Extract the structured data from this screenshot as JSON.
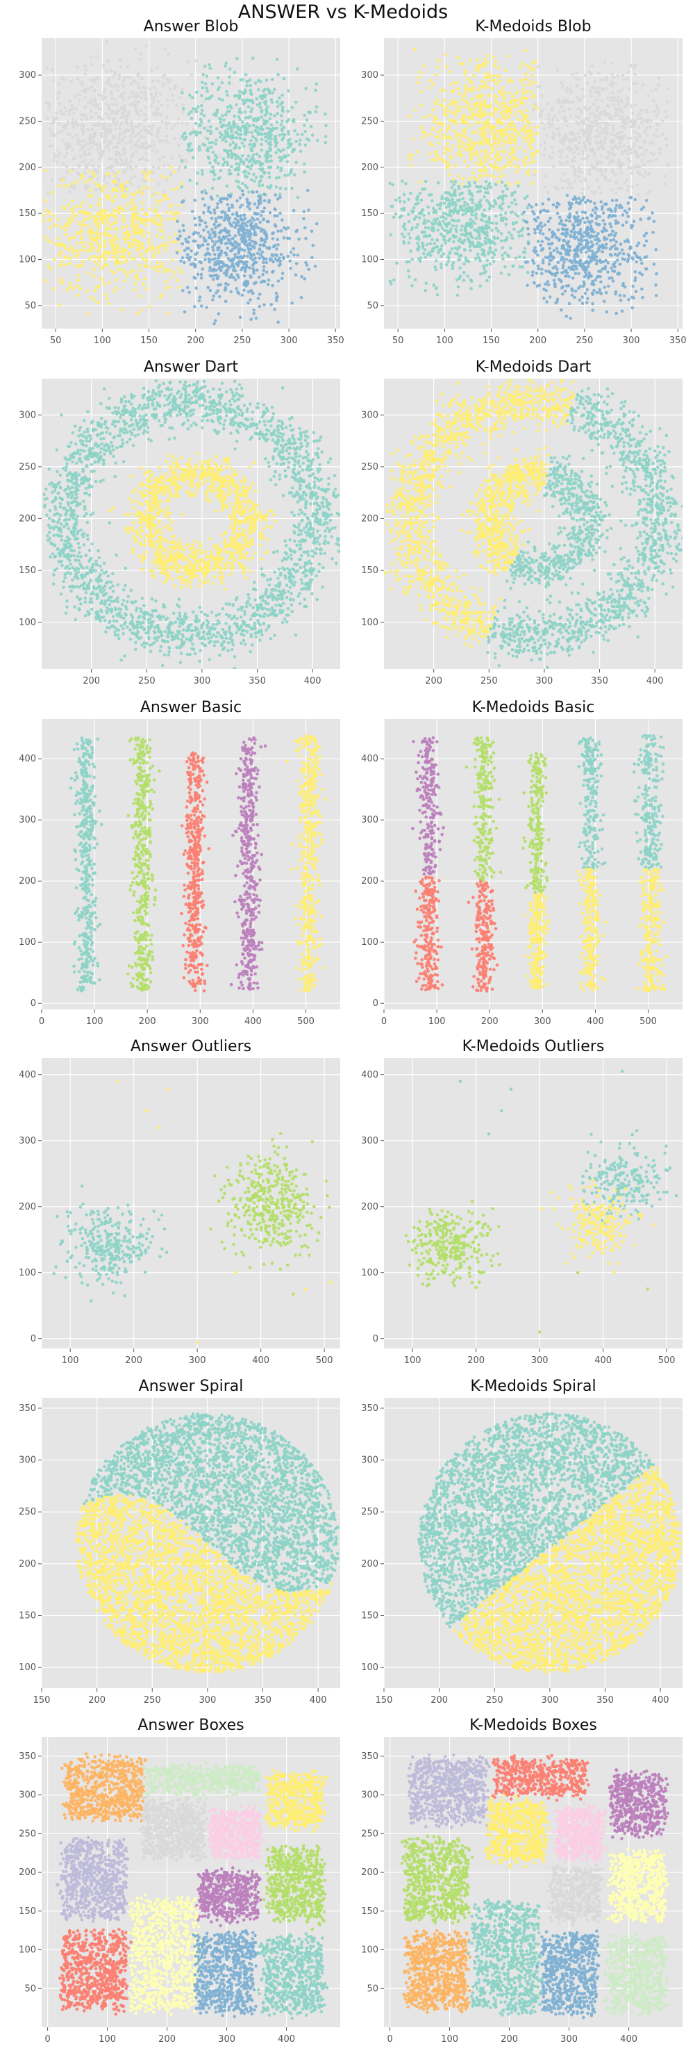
{
  "figure": {
    "suptitle": "ANSWER vs K-Medoids"
  },
  "palette": {
    "panel_bg": "#e5e5e5",
    "grid": "#ffffff"
  },
  "chart_data": [
    {
      "type": "scatter",
      "title": "Answer Blob",
      "xlim": [
        35,
        355
      ],
      "ylim": [
        25,
        340
      ],
      "xticks": [
        50,
        100,
        150,
        200,
        250,
        300,
        350
      ],
      "yticks": [
        50,
        100,
        150,
        200,
        250,
        300
      ],
      "clusters": [
        {
          "shape": "blob",
          "cx": 110,
          "cy": 240,
          "sx": 42,
          "sy": 38,
          "n": 700,
          "color": "#d9d9d9",
          "clip": [
            40,
            320,
            170,
            340
          ]
        },
        {
          "shape": "blob",
          "cx": 255,
          "cy": 235,
          "sx": 38,
          "sy": 36,
          "n": 600,
          "color": "#8dd3c7",
          "clip": [
            185,
            340,
            165,
            320
          ]
        },
        {
          "shape": "blob",
          "cx": 115,
          "cy": 130,
          "sx": 38,
          "sy": 36,
          "n": 600,
          "color": "#ffed6f",
          "clip": [
            30,
            185,
            40,
            200
          ]
        },
        {
          "shape": "blob",
          "cx": 245,
          "cy": 115,
          "sx": 38,
          "sy": 32,
          "n": 650,
          "color": "#80b1d3",
          "clip": [
            180,
            330,
            30,
            175
          ]
        }
      ]
    },
    {
      "type": "scatter",
      "title": "K-Medoids Blob",
      "xlim": [
        35,
        355
      ],
      "ylim": [
        25,
        340
      ],
      "xticks": [
        50,
        100,
        150,
        200,
        250,
        300,
        350
      ],
      "yticks": [
        50,
        100,
        150,
        200,
        250,
        300
      ],
      "clusters": [
        {
          "shape": "blob",
          "cx": 150,
          "cy": 240,
          "sx": 42,
          "sy": 38,
          "n": 650,
          "color": "#ffed6f",
          "clip": [
            60,
            200,
            180,
            330
          ]
        },
        {
          "shape": "blob",
          "cx": 270,
          "cy": 235,
          "sx": 38,
          "sy": 36,
          "n": 650,
          "color": "#d9d9d9",
          "clip": [
            195,
            340,
            170,
            320
          ]
        },
        {
          "shape": "blob",
          "cx": 120,
          "cy": 140,
          "sx": 38,
          "sy": 36,
          "n": 600,
          "color": "#8dd3c7",
          "clip": [
            40,
            190,
            60,
            185
          ]
        },
        {
          "shape": "blob",
          "cx": 245,
          "cy": 115,
          "sx": 38,
          "sy": 32,
          "n": 650,
          "color": "#80b1d3",
          "clip": [
            185,
            330,
            30,
            170
          ]
        }
      ]
    },
    {
      "type": "scatter",
      "title": "Answer Dart",
      "xlim": [
        155,
        425
      ],
      "ylim": [
        55,
        335
      ],
      "xticks": [
        200,
        250,
        300,
        350,
        400
      ],
      "yticks": [
        100,
        150,
        200,
        250,
        300
      ],
      "clusters": [
        {
          "shape": "ring",
          "cx": 290,
          "cy": 200,
          "r": 113,
          "w": 12,
          "n": 2200,
          "color": "#8dd3c7"
        },
        {
          "shape": "ring",
          "cx": 295,
          "cy": 198,
          "r": 46,
          "w": 10,
          "n": 1100,
          "color": "#ffed6f"
        }
      ]
    },
    {
      "type": "scatter",
      "title": "K-Medoids Dart",
      "xlim": [
        155,
        425
      ],
      "ylim": [
        55,
        335
      ],
      "xticks": [
        200,
        250,
        300,
        350,
        400
      ],
      "yticks": [
        100,
        150,
        200,
        250,
        300
      ],
      "clusters": [
        {
          "shape": "ring",
          "cx": 290,
          "cy": 200,
          "r": 113,
          "w": 12,
          "n": 1100,
          "color": "#ffed6f",
          "amin": 72,
          "amax": 250
        },
        {
          "shape": "ring",
          "cx": 290,
          "cy": 200,
          "r": 113,
          "w": 12,
          "n": 1100,
          "color": "#8dd3c7",
          "amin": -110,
          "amax": 72
        },
        {
          "shape": "ring",
          "cx": 295,
          "cy": 198,
          "r": 46,
          "w": 10,
          "n": 550,
          "color": "#ffed6f",
          "amin": 80,
          "amax": 240
        },
        {
          "shape": "ring",
          "cx": 295,
          "cy": 198,
          "r": 46,
          "w": 10,
          "n": 550,
          "color": "#8dd3c7",
          "amin": -120,
          "amax": 80
        }
      ]
    },
    {
      "type": "scatter",
      "title": "Answer Basic",
      "xlim": [
        0,
        565
      ],
      "ylim": [
        -10,
        465
      ],
      "xticks": [
        0,
        100,
        200,
        300,
        400,
        500
      ],
      "yticks": [
        0,
        100,
        200,
        300,
        400
      ],
      "clusters": [
        {
          "shape": "stripe",
          "cx": 85,
          "ymin": 20,
          "ymax": 435,
          "sx": 16,
          "n": 450,
          "color": "#8dd3c7"
        },
        {
          "shape": "stripe",
          "cx": 190,
          "ymin": 20,
          "ymax": 435,
          "sx": 16,
          "n": 450,
          "color": "#b3de69"
        },
        {
          "shape": "stripe",
          "cx": 290,
          "ymin": 20,
          "ymax": 410,
          "sx": 14,
          "n": 450,
          "color": "#fb8072"
        },
        {
          "shape": "stripe",
          "cx": 392,
          "ymin": 20,
          "ymax": 435,
          "sx": 16,
          "n": 450,
          "color": "#bc80bd"
        },
        {
          "shape": "stripe",
          "cx": 505,
          "ymin": 20,
          "ymax": 440,
          "sx": 18,
          "n": 450,
          "color": "#ffed6f"
        }
      ]
    },
    {
      "type": "scatter",
      "title": "K-Medoids Basic",
      "xlim": [
        0,
        565
      ],
      "ylim": [
        -10,
        465
      ],
      "xticks": [
        0,
        100,
        200,
        300,
        400,
        500
      ],
      "yticks": [
        0,
        100,
        200,
        300,
        400
      ],
      "clusters": [
        {
          "shape": "stripe",
          "cx": 85,
          "ymin": 210,
          "ymax": 435,
          "sx": 16,
          "n": 220,
          "color": "#bc80bd"
        },
        {
          "shape": "stripe",
          "cx": 85,
          "ymin": 20,
          "ymax": 210,
          "sx": 16,
          "n": 230,
          "color": "#fb8072"
        },
        {
          "shape": "stripe",
          "cx": 190,
          "ymin": 200,
          "ymax": 435,
          "sx": 16,
          "n": 230,
          "color": "#b3de69"
        },
        {
          "shape": "stripe",
          "cx": 190,
          "ymin": 20,
          "ymax": 200,
          "sx": 16,
          "n": 220,
          "color": "#fb8072"
        },
        {
          "shape": "stripe",
          "cx": 290,
          "ymin": 180,
          "ymax": 410,
          "sx": 14,
          "n": 240,
          "color": "#b3de69"
        },
        {
          "shape": "stripe",
          "cx": 290,
          "ymin": 20,
          "ymax": 180,
          "sx": 14,
          "n": 210,
          "color": "#ffed6f"
        },
        {
          "shape": "stripe",
          "cx": 392,
          "ymin": 220,
          "ymax": 435,
          "sx": 16,
          "n": 230,
          "color": "#8dd3c7"
        },
        {
          "shape": "stripe",
          "cx": 392,
          "ymin": 20,
          "ymax": 220,
          "sx": 16,
          "n": 220,
          "color": "#ffed6f"
        },
        {
          "shape": "stripe",
          "cx": 505,
          "ymin": 220,
          "ymax": 440,
          "sx": 18,
          "n": 230,
          "color": "#8dd3c7"
        },
        {
          "shape": "stripe",
          "cx": 505,
          "ymin": 20,
          "ymax": 220,
          "sx": 18,
          "n": 220,
          "color": "#ffed6f"
        }
      ]
    },
    {
      "type": "scatter",
      "title": "Answer Outliers",
      "xlim": [
        55,
        525
      ],
      "ylim": [
        -15,
        425
      ],
      "xticks": [
        100,
        200,
        300,
        400,
        500
      ],
      "yticks": [
        0,
        100,
        200,
        300,
        400
      ],
      "clusters": [
        {
          "shape": "blob",
          "cx": 160,
          "cy": 140,
          "sx": 32,
          "sy": 28,
          "n": 300,
          "color": "#8dd3c7"
        },
        {
          "shape": "blob",
          "cx": 415,
          "cy": 205,
          "sx": 35,
          "sy": 38,
          "n": 400,
          "color": "#b3de69"
        },
        {
          "shape": "points",
          "color": "#ffed6f",
          "pts": [
            [
              175,
              390
            ],
            [
              255,
              378
            ],
            [
              240,
              320
            ],
            [
              220,
              345
            ],
            [
              510,
              85
            ],
            [
              300,
              -5
            ],
            [
              470,
              75
            ],
            [
              360,
              100
            ]
          ]
        }
      ]
    },
    {
      "type": "scatter",
      "title": "K-Medoids Outliers",
      "xlim": [
        55,
        525
      ],
      "ylim": [
        -15,
        425
      ],
      "xticks": [
        100,
        200,
        300,
        400,
        500
      ],
      "yticks": [
        0,
        100,
        200,
        300,
        400
      ],
      "clusters": [
        {
          "shape": "blob",
          "cx": 160,
          "cy": 140,
          "sx": 32,
          "sy": 28,
          "n": 300,
          "color": "#b3de69"
        },
        {
          "shape": "blob",
          "cx": 435,
          "cy": 240,
          "sx": 32,
          "sy": 25,
          "n": 200,
          "color": "#8dd3c7"
        },
        {
          "shape": "blob",
          "cx": 395,
          "cy": 175,
          "sx": 30,
          "sy": 25,
          "n": 200,
          "color": "#ffed6f"
        },
        {
          "shape": "points",
          "color": "#8dd3c7",
          "pts": [
            [
              175,
              390
            ],
            [
              255,
              378
            ],
            [
              240,
              345
            ],
            [
              220,
              310
            ],
            [
              430,
              405
            ]
          ]
        },
        {
          "shape": "points",
          "color": "#b3de69",
          "pts": [
            [
              300,
              10
            ],
            [
              360,
              100
            ],
            [
              470,
              75
            ]
          ]
        }
      ]
    },
    {
      "type": "scatter",
      "title": "Answer Spiral",
      "xlim": [
        150,
        420
      ],
      "ylim": [
        80,
        360
      ],
      "xticks": [
        150,
        200,
        250,
        300,
        350,
        400
      ],
      "yticks": [
        100,
        150,
        200,
        250,
        300,
        350
      ],
      "clusters": [
        {
          "shape": "yin",
          "cx": 300,
          "cy": 220,
          "R": 125,
          "n": 2600,
          "color": "#8dd3c7",
          "side": "top"
        },
        {
          "shape": "yin",
          "cx": 300,
          "cy": 220,
          "R": 125,
          "n": 2600,
          "color": "#ffed6f",
          "side": "bottom"
        }
      ]
    },
    {
      "type": "scatter",
      "title": "K-Medoids Spiral",
      "xlim": [
        150,
        420
      ],
      "ylim": [
        80,
        360
      ],
      "xticks": [
        150,
        200,
        250,
        300,
        350,
        400
      ],
      "yticks": [
        100,
        150,
        200,
        250,
        300,
        350
      ],
      "clusters": [
        {
          "shape": "yin",
          "cx": 300,
          "cy": 220,
          "R": 125,
          "n": 2600,
          "color": "#8dd3c7",
          "side": "tl"
        },
        {
          "shape": "yin",
          "cx": 300,
          "cy": 220,
          "R": 125,
          "n": 2600,
          "color": "#ffed6f",
          "side": "br"
        }
      ]
    },
    {
      "type": "scatter",
      "title": "Answer Boxes",
      "xlim": [
        -10,
        490
      ],
      "ylim": [
        0,
        375
      ],
      "xticks": [
        0,
        100,
        200,
        300,
        400
      ],
      "yticks": [
        50,
        100,
        150,
        200,
        250,
        300,
        350
      ],
      "clusters": [
        {
          "shape": "box",
          "x0": 30,
          "x1": 160,
          "y0": 270,
          "y1": 345,
          "n": 700,
          "color": "#fdb462"
        },
        {
          "shape": "box",
          "x0": 165,
          "x1": 355,
          "y0": 305,
          "y1": 335,
          "n": 500,
          "color": "#ccebc5"
        },
        {
          "shape": "box",
          "x0": 370,
          "x1": 460,
          "y0": 260,
          "y1": 325,
          "n": 500,
          "color": "#ffed6f"
        },
        {
          "shape": "box",
          "x0": 160,
          "x1": 260,
          "y0": 220,
          "y1": 290,
          "n": 600,
          "color": "#d9d9d9"
        },
        {
          "shape": "box",
          "x0": 275,
          "x1": 355,
          "y0": 220,
          "y1": 280,
          "n": 500,
          "color": "#fccde5"
        },
        {
          "shape": "box",
          "x0": 25,
          "x1": 130,
          "y0": 140,
          "y1": 240,
          "n": 700,
          "color": "#bebada"
        },
        {
          "shape": "box",
          "x0": 255,
          "x1": 350,
          "y0": 140,
          "y1": 200,
          "n": 500,
          "color": "#bc80bd"
        },
        {
          "shape": "box",
          "x0": 370,
          "x1": 460,
          "y0": 140,
          "y1": 230,
          "n": 600,
          "color": "#b3de69"
        },
        {
          "shape": "box",
          "x0": 25,
          "x1": 130,
          "y0": 25,
          "y1": 120,
          "n": 700,
          "color": "#fb8072"
        },
        {
          "shape": "box",
          "x0": 140,
          "x1": 250,
          "y0": 20,
          "y1": 165,
          "n": 800,
          "color": "#ffffb3"
        },
        {
          "shape": "box",
          "x0": 250,
          "x1": 345,
          "y0": 20,
          "y1": 120,
          "n": 600,
          "color": "#80b1d3"
        },
        {
          "shape": "box",
          "x0": 360,
          "x1": 460,
          "y0": 20,
          "y1": 115,
          "n": 600,
          "color": "#8dd3c7"
        }
      ]
    },
    {
      "type": "scatter",
      "title": "K-Medoids Boxes",
      "xlim": [
        -10,
        490
      ],
      "ylim": [
        0,
        375
      ],
      "xticks": [
        0,
        100,
        200,
        300,
        400
      ],
      "yticks": [
        50,
        100,
        150,
        200,
        250,
        300,
        350
      ],
      "clusters": [
        {
          "shape": "box",
          "x0": 35,
          "x1": 160,
          "y0": 265,
          "y1": 345,
          "n": 700,
          "color": "#bebada"
        },
        {
          "shape": "box",
          "x0": 175,
          "x1": 330,
          "y0": 300,
          "y1": 345,
          "n": 500,
          "color": "#fb8072"
        },
        {
          "shape": "box",
          "x0": 370,
          "x1": 460,
          "y0": 250,
          "y1": 325,
          "n": 500,
          "color": "#bc80bd"
        },
        {
          "shape": "box",
          "x0": 165,
          "x1": 260,
          "y0": 215,
          "y1": 290,
          "n": 600,
          "color": "#ffed6f"
        },
        {
          "shape": "box",
          "x0": 280,
          "x1": 355,
          "y0": 220,
          "y1": 280,
          "n": 500,
          "color": "#fccde5"
        },
        {
          "shape": "box",
          "x0": 25,
          "x1": 130,
          "y0": 140,
          "y1": 240,
          "n": 700,
          "color": "#b3de69"
        },
        {
          "shape": "box",
          "x0": 270,
          "x1": 350,
          "y0": 140,
          "y1": 205,
          "n": 450,
          "color": "#d9d9d9"
        },
        {
          "shape": "box",
          "x0": 370,
          "x1": 460,
          "y0": 140,
          "y1": 225,
          "n": 600,
          "color": "#ffffb3"
        },
        {
          "shape": "box",
          "x0": 30,
          "x1": 130,
          "y0": 25,
          "y1": 120,
          "n": 700,
          "color": "#fdb462"
        },
        {
          "shape": "box",
          "x0": 140,
          "x1": 250,
          "y0": 20,
          "y1": 160,
          "n": 800,
          "color": "#8dd3c7"
        },
        {
          "shape": "box",
          "x0": 255,
          "x1": 345,
          "y0": 20,
          "y1": 120,
          "n": 600,
          "color": "#80b1d3"
        },
        {
          "shape": "box",
          "x0": 365,
          "x1": 460,
          "y0": 20,
          "y1": 115,
          "n": 600,
          "color": "#ccebc5"
        }
      ]
    }
  ]
}
